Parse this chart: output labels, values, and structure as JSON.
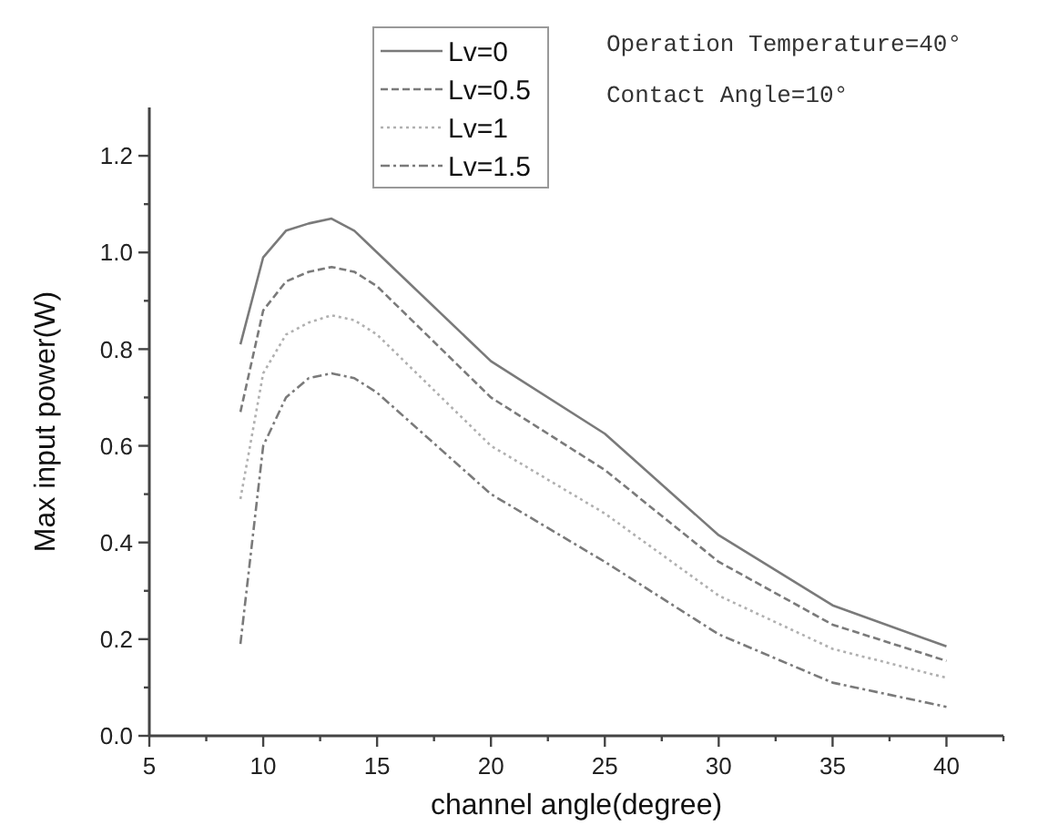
{
  "chart_data": {
    "type": "line",
    "xlabel": "channel angle(degree)",
    "ylabel": "Max input power(W)",
    "x": [
      9,
      10,
      11,
      12,
      13,
      14,
      15,
      20,
      25,
      30,
      35,
      40
    ],
    "xlim": [
      5,
      42.5
    ],
    "ylim": [
      0,
      1.3
    ],
    "xticks": [
      5,
      {
        "value": 7.5,
        "label": null
      },
      10,
      {
        "value": 12.5,
        "label": null
      },
      15,
      {
        "value": 17.5,
        "label": null
      },
      20,
      {
        "value": 22.5,
        "label": null
      },
      25,
      {
        "value": 27.5,
        "label": null
      },
      30,
      {
        "value": 32.5,
        "label": null
      },
      35,
      {
        "value": 37.5,
        "label": null
      },
      40,
      {
        "value": 42.5,
        "label": null
      }
    ],
    "yticks": [
      {
        "value": 0,
        "label": "0.0"
      },
      {
        "value": 0.1,
        "label": null
      },
      0.2,
      {
        "value": 0.3,
        "label": null
      },
      0.4,
      {
        "value": 0.5,
        "label": null
      },
      0.6,
      {
        "value": 0.7,
        "label": null
      },
      0.8,
      {
        "value": 0.9,
        "label": null
      },
      {
        "value": 1,
        "label": "1.0"
      },
      {
        "value": 1.1,
        "label": null
      },
      1.2
    ],
    "series": [
      {
        "name": "Lv=0",
        "color": "#7a7a7a",
        "line_style": "solid",
        "values": [
          0.81,
          0.99,
          1.045,
          1.06,
          1.07,
          1.045,
          1.0,
          0.775,
          0.625,
          0.415,
          0.27,
          0.185
        ]
      },
      {
        "name": "Lv=0.5",
        "color": "#7a7a7a",
        "line_style": "dashed",
        "values": [
          0.67,
          0.88,
          0.94,
          0.96,
          0.97,
          0.96,
          0.93,
          0.7,
          0.55,
          0.36,
          0.23,
          0.155
        ]
      },
      {
        "name": "Lv=1",
        "color": "#b0b0b0",
        "line_style": "dotted",
        "values": [
          0.49,
          0.75,
          0.83,
          0.855,
          0.87,
          0.86,
          0.83,
          0.6,
          0.46,
          0.29,
          0.18,
          0.12
        ]
      },
      {
        "name": "Lv=1.5",
        "color": "#7a7a7a",
        "line_style": "dashdot",
        "values": [
          0.19,
          0.6,
          0.7,
          0.74,
          0.75,
          0.74,
          0.71,
          0.5,
          0.36,
          0.21,
          0.11,
          0.06
        ]
      }
    ],
    "legend": "top",
    "grid": false,
    "annotations": [
      "Operation Temperature=40°",
      "Contact Angle=10°"
    ]
  }
}
